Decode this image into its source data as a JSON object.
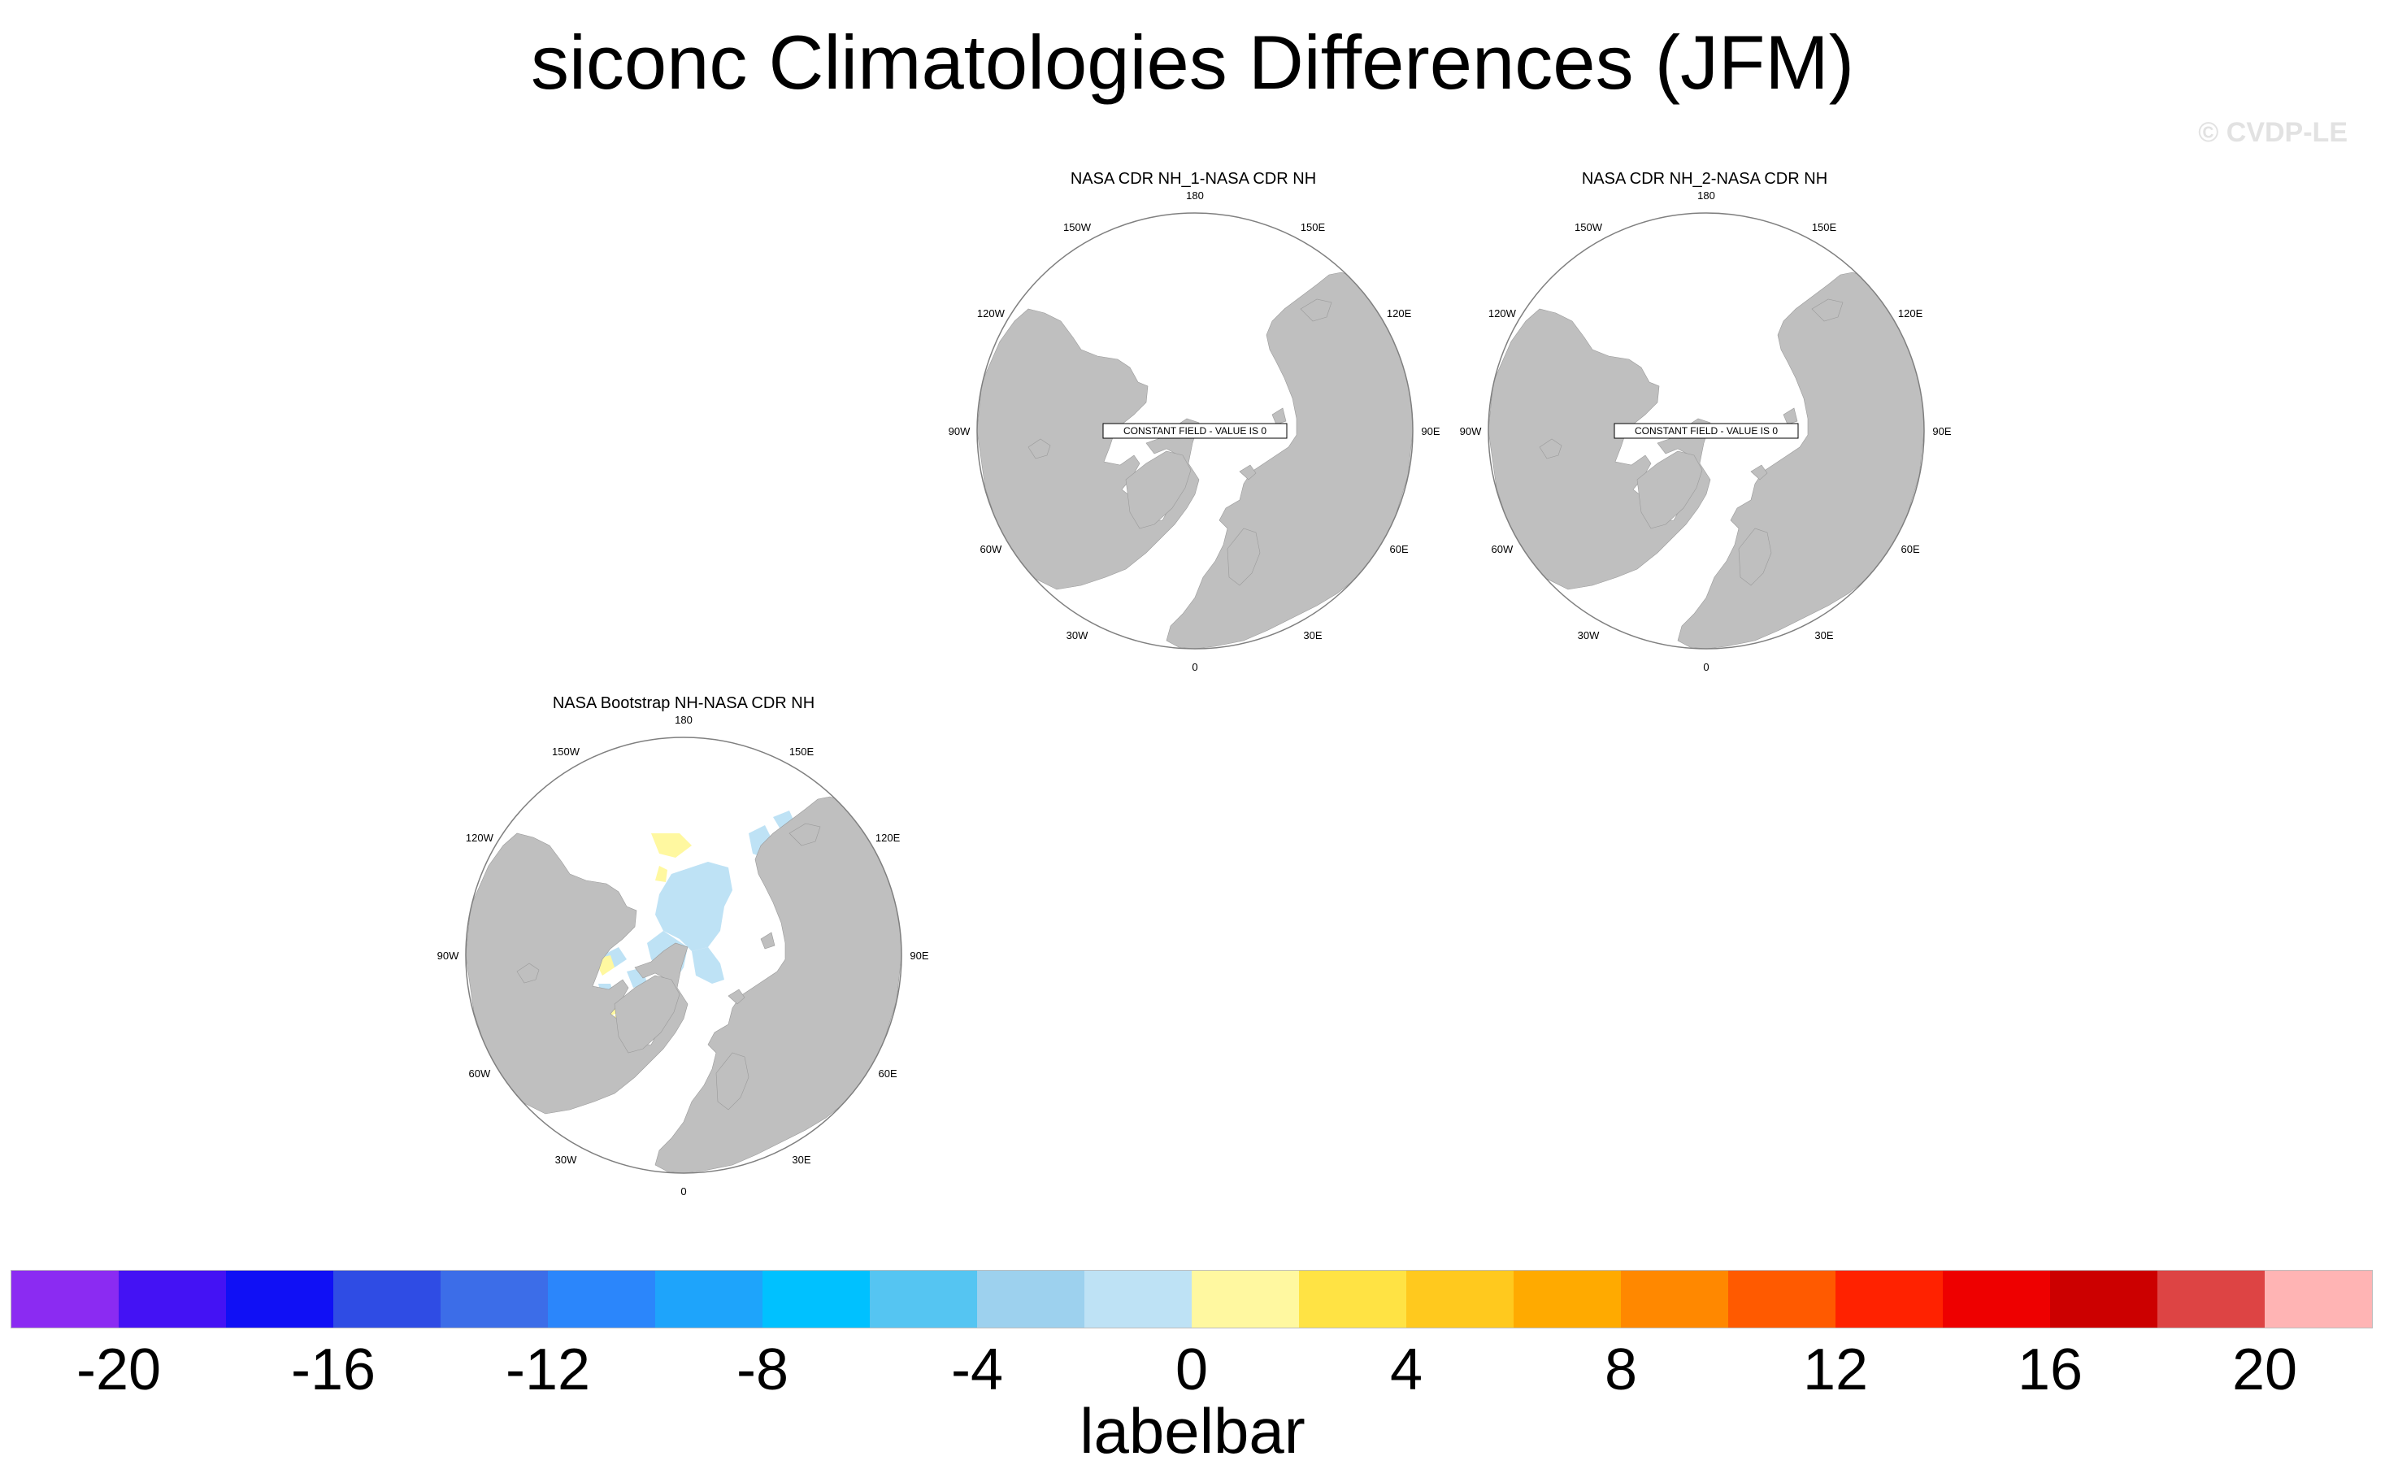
{
  "figure": {
    "title": "siconc Climatologies Differences (JFM)",
    "copyright": "© CVDP-LE"
  },
  "colors": {
    "land": "#bfbfbf",
    "ocean": "#ffffff",
    "circle_outline": "#7f7f7f"
  },
  "longitude_labels": [
    "180",
    "150E",
    "120E",
    "90E",
    "60E",
    "30E",
    "0",
    "30W",
    "60W",
    "90W",
    "120W",
    "150W"
  ],
  "panels": [
    {
      "title": "NASA CDR NH_1-NASA CDR NH",
      "constant_field_label": "CONSTANT FIELD - VALUE IS 0",
      "field": "constant"
    },
    {
      "title": "NASA CDR NH_2-NASA CDR NH",
      "constant_field_label": "CONSTANT FIELD - VALUE IS 0",
      "field": "constant"
    },
    {
      "title": "NASA Bootstrap NH-NASA CDR NH",
      "field": "difference",
      "dominant_shading": [
        "light-blue (0 to -2)",
        "yellow (0 to 2)"
      ]
    }
  ],
  "labelbar": {
    "title": "labelbar",
    "colors": [
      "#8B2BF2",
      "#4412F4",
      "#1010F5",
      "#2F4CE4",
      "#3C6DE8",
      "#2B86FB",
      "#1EA4FB",
      "#00C1FF",
      "#55C5F2",
      "#9DD1EE",
      "#BEE2F5",
      "#FFF8A0",
      "#FFE344",
      "#FFC91E",
      "#FFAA00",
      "#FF8800",
      "#FF5A00",
      "#FF2200",
      "#EE0000",
      "#CC0000",
      "#DD4444",
      "#FFB4B4"
    ],
    "tick_labels": [
      "-20",
      "-16",
      "-12",
      "-8",
      "-4",
      "0",
      "4",
      "8",
      "12",
      "16",
      "20"
    ]
  }
}
